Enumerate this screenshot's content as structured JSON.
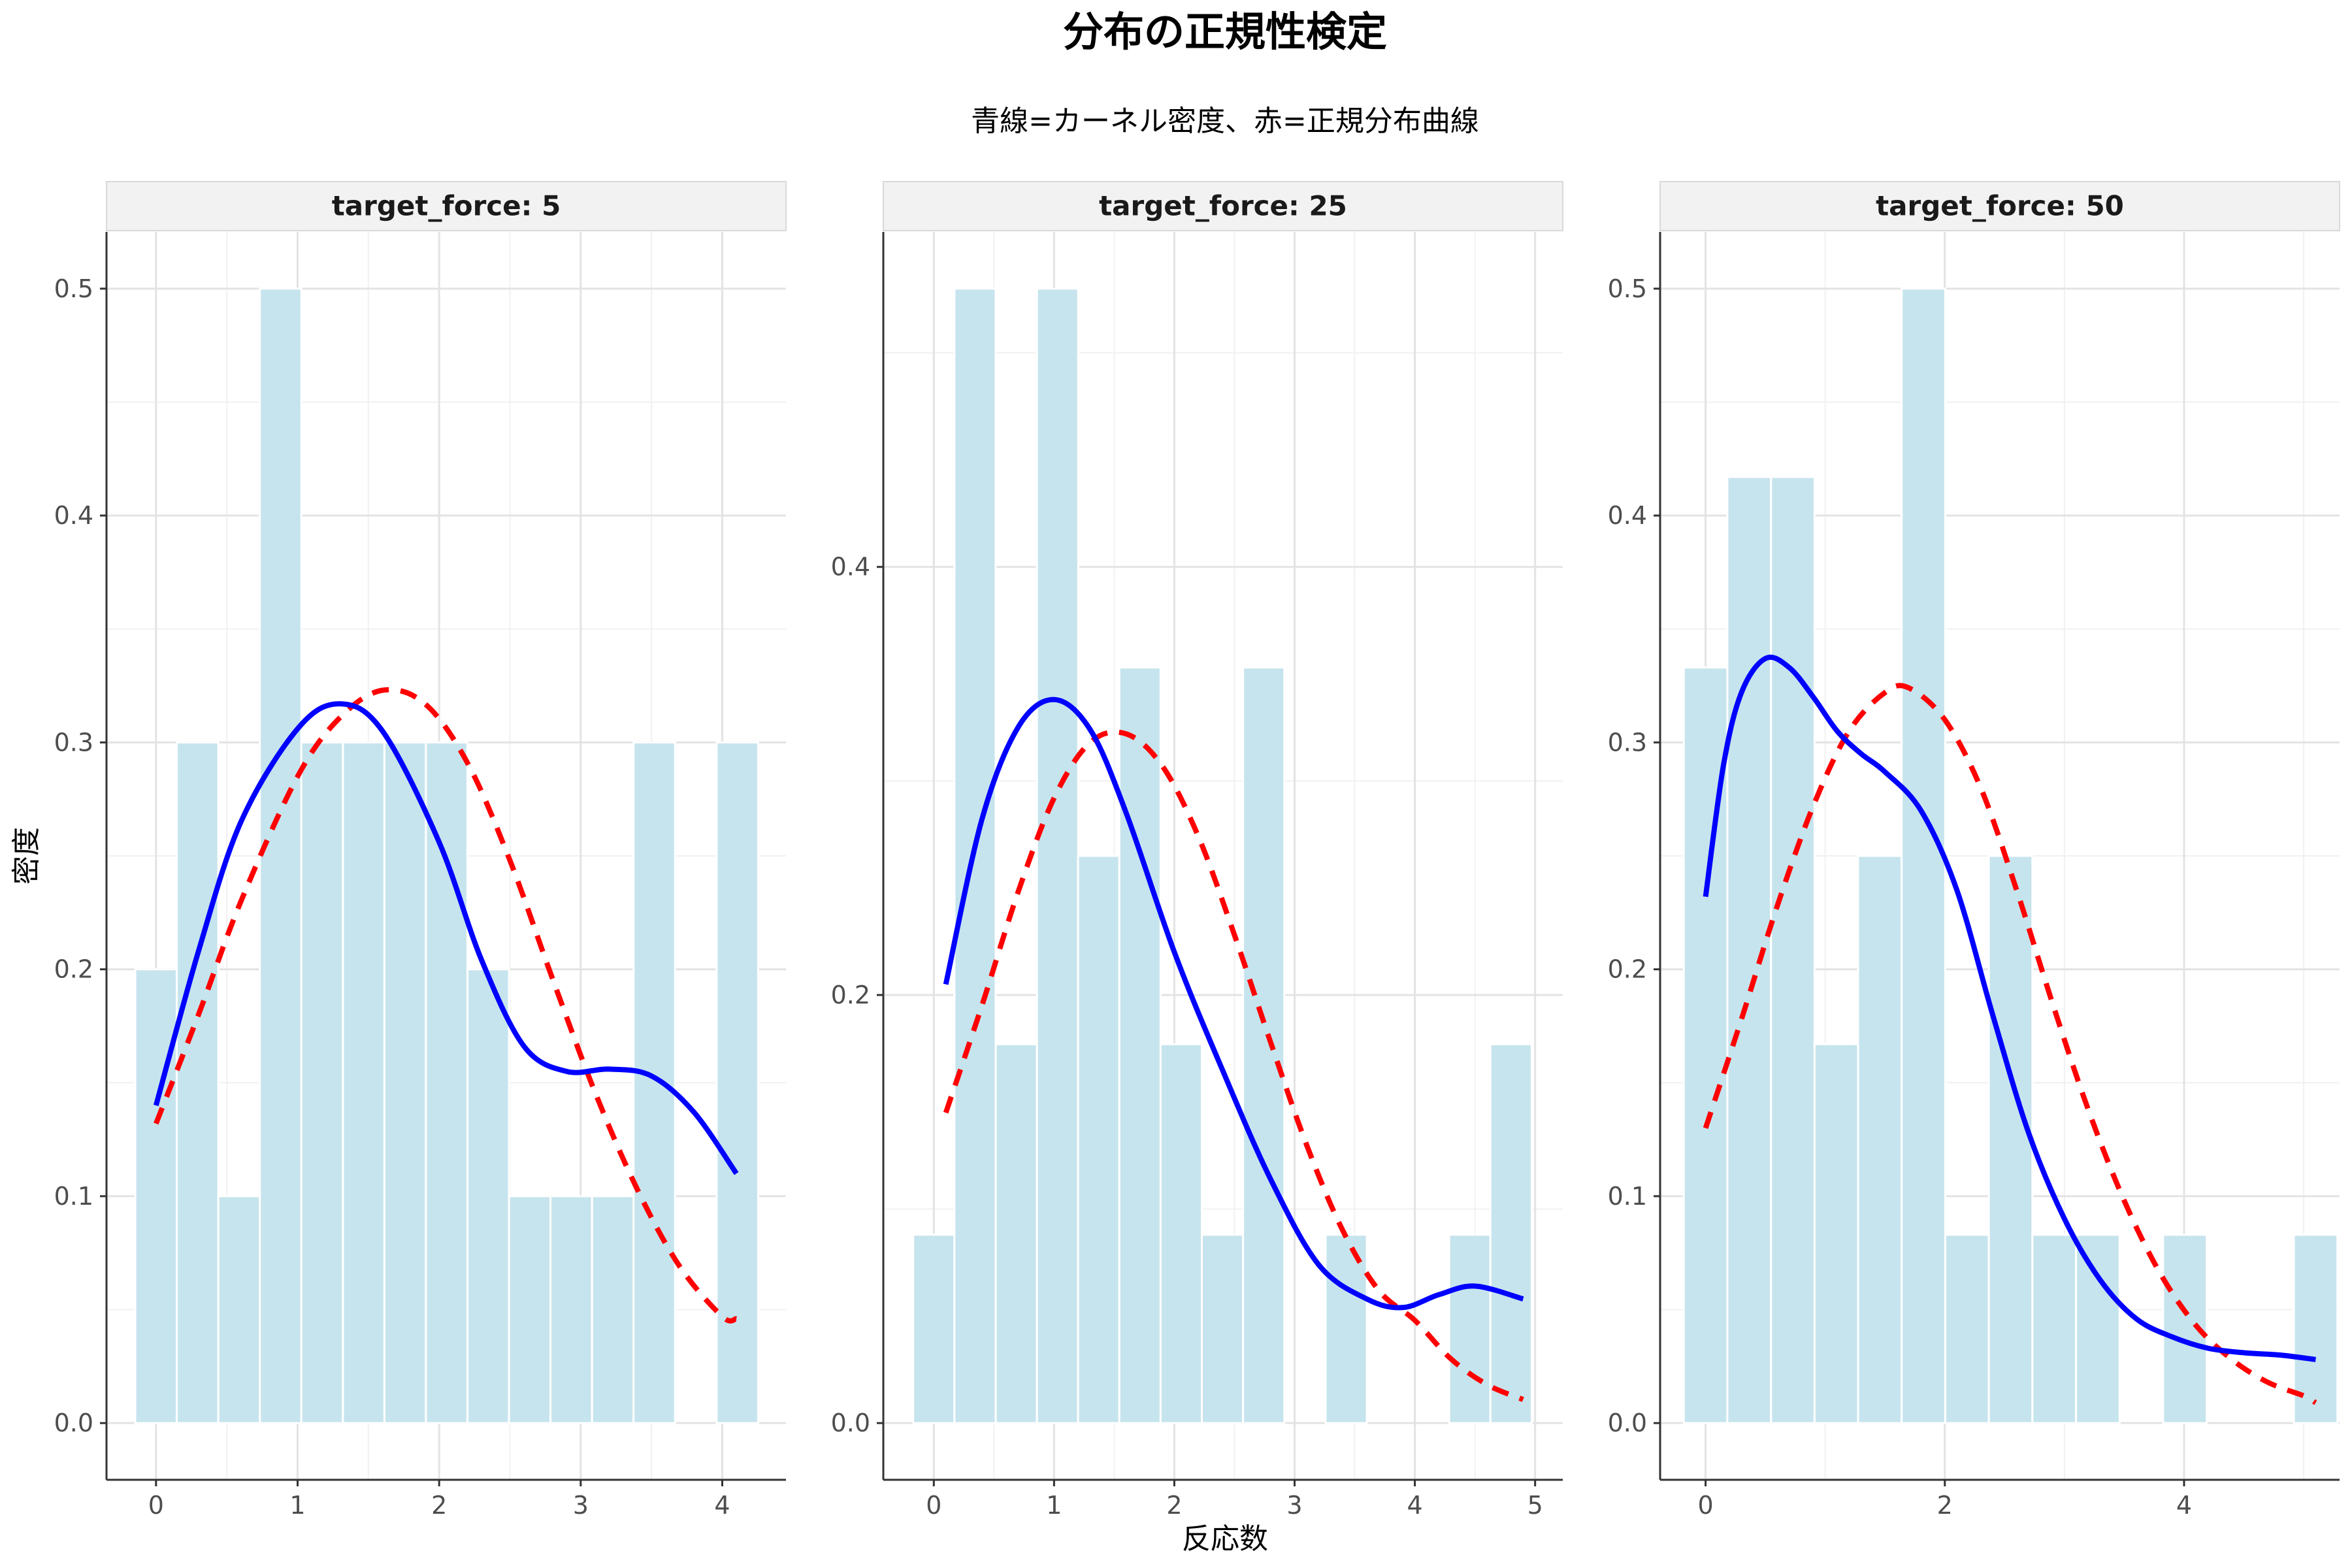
{
  "chart_data": {
    "type": "bar",
    "title": "分布の正規性検定",
    "subtitle": "青線=カーネル密度、赤=正規分布曲線",
    "xlabel": "反応数",
    "ylabel": "密度",
    "grid": true,
    "legend": "none",
    "colors": {
      "bar_fill": "#c6e4ed",
      "kde_line": "#0000ff",
      "normal_line": "#ff0000",
      "strip_bg": "#f2f2f2",
      "grid_major": "#e3e3e3",
      "grid_minor": "#f1f1f1"
    },
    "panels": [
      {
        "strip_label": "target_force: 5",
        "xlim": [
          -0.35,
          4.45
        ],
        "ylim": [
          -0.025,
          0.525
        ],
        "x_ticks": [
          0,
          1,
          2,
          3,
          4
        ],
        "y_ticks": [
          0.0,
          0.1,
          0.2,
          0.3,
          0.4,
          0.5
        ],
        "x_tick_labels": [
          "0",
          "1",
          "2",
          "3",
          "4"
        ],
        "y_tick_labels": [
          "0.0",
          "0.1",
          "0.2",
          "0.3",
          "0.4",
          "0.5"
        ],
        "bin_width": 0.2933,
        "bins": [
          {
            "x": 0.0,
            "y": 0.2
          },
          {
            "x": 0.293,
            "y": 0.3
          },
          {
            "x": 0.587,
            "y": 0.1
          },
          {
            "x": 0.88,
            "y": 0.5
          },
          {
            "x": 1.173,
            "y": 0.3
          },
          {
            "x": 1.467,
            "y": 0.3
          },
          {
            "x": 1.76,
            "y": 0.3
          },
          {
            "x": 2.053,
            "y": 0.3
          },
          {
            "x": 2.347,
            "y": 0.2
          },
          {
            "x": 2.64,
            "y": 0.1
          },
          {
            "x": 2.933,
            "y": 0.1
          },
          {
            "x": 3.227,
            "y": 0.1
          },
          {
            "x": 3.52,
            "y": 0.3
          },
          {
            "x": 3.813,
            "y": 0.0
          },
          {
            "x": 4.107,
            "y": 0.3
          }
        ],
        "kde": {
          "x": [
            0.0,
            0.3,
            0.6,
            1.0,
            1.3,
            1.6,
            2.0,
            2.3,
            2.6,
            2.9,
            3.2,
            3.5,
            3.8,
            4.1
          ],
          "y": [
            0.14,
            0.208,
            0.265,
            0.306,
            0.317,
            0.305,
            0.256,
            0.204,
            0.166,
            0.155,
            0.156,
            0.153,
            0.137,
            0.11
          ]
        },
        "normal": {
          "x": [
            0.0,
            0.3,
            0.6,
            1.0,
            1.3,
            1.6,
            1.9,
            2.2,
            2.5,
            2.8,
            3.1,
            3.4,
            3.7,
            4.0,
            4.1
          ],
          "y": [
            0.132,
            0.18,
            0.23,
            0.285,
            0.311,
            0.323,
            0.317,
            0.291,
            0.248,
            0.196,
            0.146,
            0.103,
            0.069,
            0.047,
            0.046
          ]
        }
      },
      {
        "strip_label": "target_force: 25",
        "xlim": [
          -0.42,
          5.23
        ],
        "ylim": [
          -0.0265,
          0.5565
        ],
        "x_ticks": [
          0,
          1,
          2,
          3,
          4,
          5
        ],
        "y_ticks": [
          0.0,
          0.2,
          0.4
        ],
        "x_tick_labels": [
          "0",
          "1",
          "2",
          "3",
          "4",
          "5"
        ],
        "y_tick_labels": [
          "0.0",
          "0.2",
          "0.4"
        ],
        "bin_width": 0.3429,
        "bins": [
          {
            "x": 0.0,
            "y": 0.088
          },
          {
            "x": 0.343,
            "y": 0.53
          },
          {
            "x": 0.686,
            "y": 0.177
          },
          {
            "x": 1.029,
            "y": 0.53
          },
          {
            "x": 1.371,
            "y": 0.265
          },
          {
            "x": 1.714,
            "y": 0.353
          },
          {
            "x": 2.057,
            "y": 0.177
          },
          {
            "x": 2.4,
            "y": 0.088
          },
          {
            "x": 2.743,
            "y": 0.353
          },
          {
            "x": 3.086,
            "y": 0.0
          },
          {
            "x": 3.429,
            "y": 0.088
          },
          {
            "x": 3.771,
            "y": 0.0
          },
          {
            "x": 4.114,
            "y": 0.0
          },
          {
            "x": 4.457,
            "y": 0.088
          },
          {
            "x": 4.8,
            "y": 0.177
          }
        ],
        "kde": {
          "x": [
            0.1,
            0.4,
            0.7,
            1.0,
            1.3,
            1.6,
            2.0,
            2.4,
            2.8,
            3.2,
            3.6,
            3.9,
            4.2,
            4.5,
            4.9
          ],
          "y": [
            0.205,
            0.282,
            0.325,
            0.338,
            0.324,
            0.285,
            0.22,
            0.165,
            0.114,
            0.074,
            0.058,
            0.054,
            0.06,
            0.064,
            0.058
          ]
        },
        "normal": {
          "x": [
            0.1,
            0.4,
            0.7,
            1.0,
            1.3,
            1.6,
            1.9,
            2.2,
            2.5,
            2.8,
            3.1,
            3.4,
            3.7,
            4.0,
            4.3,
            4.6,
            4.9
          ],
          "y": [
            0.145,
            0.195,
            0.248,
            0.292,
            0.318,
            0.322,
            0.307,
            0.274,
            0.228,
            0.178,
            0.13,
            0.09,
            0.062,
            0.048,
            0.03,
            0.018,
            0.011
          ]
        }
      },
      {
        "strip_label": "target_force: 50",
        "xlim": [
          -0.38,
          5.3
        ],
        "ylim": [
          -0.025,
          0.525
        ],
        "x_ticks": [
          0,
          2,
          4
        ],
        "y_ticks": [
          0.0,
          0.1,
          0.2,
          0.3,
          0.4,
          0.5
        ],
        "x_tick_labels": [
          "0",
          "2",
          "4"
        ],
        "y_tick_labels": [
          "0.0",
          "0.1",
          "0.2",
          "0.3",
          "0.4",
          "0.5"
        ],
        "bin_width": 0.3643,
        "bins": [
          {
            "x": 0.0,
            "y": 0.333
          },
          {
            "x": 0.364,
            "y": 0.417
          },
          {
            "x": 0.729,
            "y": 0.417
          },
          {
            "x": 1.093,
            "y": 0.167
          },
          {
            "x": 1.457,
            "y": 0.25
          },
          {
            "x": 1.821,
            "y": 0.5
          },
          {
            "x": 2.186,
            "y": 0.083
          },
          {
            "x": 2.55,
            "y": 0.25
          },
          {
            "x": 2.914,
            "y": 0.083
          },
          {
            "x": 3.279,
            "y": 0.083
          },
          {
            "x": 3.643,
            "y": 0.0
          },
          {
            "x": 4.007,
            "y": 0.083
          },
          {
            "x": 4.371,
            "y": 0.0
          },
          {
            "x": 4.736,
            "y": 0.0
          },
          {
            "x": 5.1,
            "y": 0.083
          }
        ],
        "kde": {
          "x": [
            0.0,
            0.15,
            0.3,
            0.5,
            0.7,
            0.9,
            1.1,
            1.3,
            1.5,
            1.8,
            2.1,
            2.4,
            2.7,
            3.0,
            3.3,
            3.6,
            3.9,
            4.2,
            4.5,
            4.8,
            5.1
          ],
          "y": [
            0.232,
            0.29,
            0.322,
            0.337,
            0.333,
            0.32,
            0.305,
            0.295,
            0.287,
            0.27,
            0.235,
            0.18,
            0.128,
            0.09,
            0.063,
            0.046,
            0.038,
            0.033,
            0.031,
            0.03,
            0.028
          ]
        },
        "normal": {
          "x": [
            0.0,
            0.3,
            0.6,
            0.9,
            1.2,
            1.5,
            1.7,
            2.0,
            2.3,
            2.6,
            2.9,
            3.2,
            3.5,
            3.8,
            4.1,
            4.4,
            4.7,
            5.0,
            5.1
          ],
          "y": [
            0.13,
            0.178,
            0.228,
            0.272,
            0.305,
            0.322,
            0.324,
            0.31,
            0.28,
            0.235,
            0.185,
            0.138,
            0.098,
            0.066,
            0.043,
            0.028,
            0.018,
            0.012,
            0.009
          ]
        }
      }
    ]
  }
}
